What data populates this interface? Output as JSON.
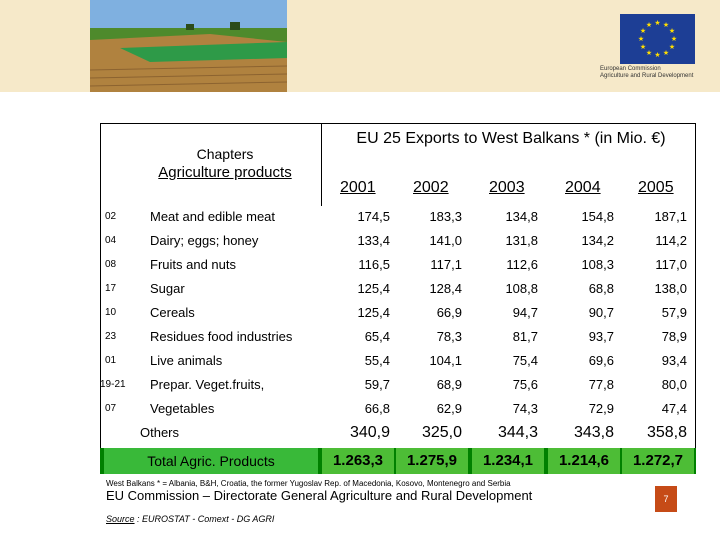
{
  "header": {
    "eu_caption_line1": "European Commission",
    "eu_caption_line2": "Agriculture and Rural Development"
  },
  "table": {
    "title": "EU 25  Exports  to  West Balkans * (in Mio. €)",
    "chapters_label": "Chapters",
    "chapters_sub": "Agriculture products",
    "years": [
      "2001",
      "2002",
      "2003",
      "2004",
      "2005"
    ],
    "rows": [
      {
        "code": "02",
        "label": "Meat and edible meat",
        "values": [
          "174,5",
          "183,3",
          "134,8",
          "154,8",
          "187,1"
        ]
      },
      {
        "code": "04",
        "label": "Dairy; eggs; honey",
        "values": [
          "133,4",
          "141,0",
          "131,8",
          "134,2",
          "114,2"
        ]
      },
      {
        "code": "08",
        "label": "Fruits and nuts",
        "values": [
          "116,5",
          "117,1",
          "112,6",
          "108,3",
          "117,0"
        ]
      },
      {
        "code": "17",
        "label": "Sugar",
        "values": [
          "125,4",
          "128,4",
          "108,8",
          "68,8",
          "138,0"
        ]
      },
      {
        "code": "10",
        "label": "Cereals",
        "values": [
          "125,4",
          "66,9",
          "94,7",
          "90,7",
          "57,9"
        ]
      },
      {
        "code": "23",
        "label": "Residues food industries",
        "values": [
          "65,4",
          "78,3",
          "81,7",
          "93,7",
          "78,9"
        ]
      },
      {
        "code": "01",
        "label": "Live animals",
        "values": [
          "55,4",
          "104,1",
          "75,4",
          "69,6",
          "93,4"
        ]
      },
      {
        "code": "19-21",
        "label": "Prepar. Veget.fruits,",
        "values": [
          "59,7",
          "68,9",
          "75,6",
          "77,8",
          "80,0"
        ]
      },
      {
        "code": "07",
        "label": "Vegetables",
        "values": [
          "66,8",
          "62,9",
          "74,3",
          "72,9",
          "47,4"
        ]
      }
    ],
    "others": {
      "label": "Others",
      "values": [
        "340,9",
        "325,0",
        "344,3",
        "343,8",
        "358,8"
      ]
    },
    "total": {
      "label": "Total  Agric. Products",
      "values": [
        "1.263,3",
        "1.275,9",
        "1.234,1",
        "1.214,6",
        "1.272,7"
      ]
    }
  },
  "footer": {
    "note": "West Balkans * = Albania, B&H, Croatia, the former Yugoslav Rep. of Macedonia, Kosovo, Montenegro and Serbia",
    "commission_line": "EU Commission – Directorate General Agriculture and Rural Development",
    "page_number": "7",
    "source_label": "Source",
    "source_text": " : EUROSTAT - Comext - DG AGRI"
  }
}
